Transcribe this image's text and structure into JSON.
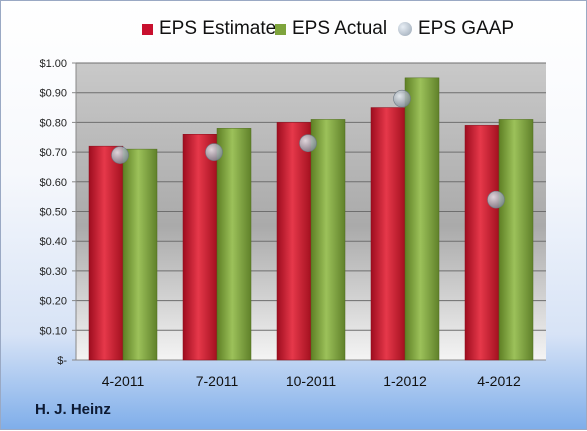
{
  "chart_data": {
    "type": "bar",
    "categories": [
      "4-2011",
      "7-2011",
      "10-2011",
      "1-2012",
      "4-2012"
    ],
    "series": [
      {
        "name": "EPS Estimate",
        "values": [
          0.72,
          0.76,
          0.8,
          0.85,
          0.79
        ],
        "color": "#c8102e"
      },
      {
        "name": "EPS Actual",
        "values": [
          0.71,
          0.78,
          0.81,
          0.95,
          0.81
        ],
        "color": "#7ea43c"
      },
      {
        "name": "EPS GAAP",
        "values": [
          0.69,
          0.7,
          0.73,
          0.88,
          0.54
        ],
        "color": "#a9b3bd",
        "marker": "circle"
      }
    ],
    "ylim": [
      0,
      1.0
    ],
    "yticks": [
      "$-",
      "$0.10",
      "$0.20",
      "$0.30",
      "$0.40",
      "$0.50",
      "$0.60",
      "$0.70",
      "$0.80",
      "$0.90",
      "$1.00"
    ],
    "grid": true,
    "legend_position": "top"
  },
  "company": "H. J. Heinz"
}
